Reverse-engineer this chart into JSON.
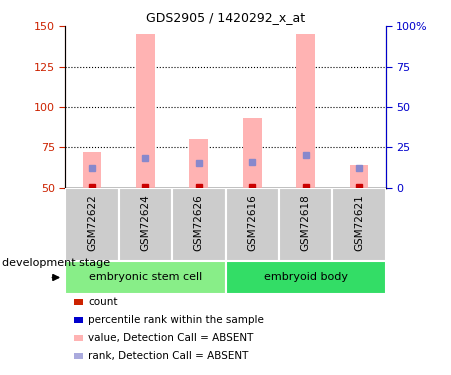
{
  "title": "GDS2905 / 1420292_x_at",
  "samples": [
    "GSM72622",
    "GSM72624",
    "GSM72626",
    "GSM72616",
    "GSM72618",
    "GSM72621"
  ],
  "groups": [
    {
      "label": "embryonic stem cell",
      "start": 0,
      "end": 3,
      "color": "#88ee88"
    },
    {
      "label": "embryoid body",
      "start": 3,
      "end": 6,
      "color": "#33dd66"
    }
  ],
  "bar_bottom": 50,
  "pink_tops": [
    72,
    145,
    80,
    93,
    145,
    64
  ],
  "blue_vals": [
    62,
    68,
    65,
    66,
    70,
    62
  ],
  "red_vals": [
    50.5,
    50.5,
    50.5,
    50.5,
    50.5,
    50.5
  ],
  "ylim_left": [
    50,
    150
  ],
  "ylim_right": [
    0,
    100
  ],
  "yticks_left": [
    50,
    75,
    100,
    125,
    150
  ],
  "yticks_right": [
    0,
    25,
    50,
    75,
    100
  ],
  "ytick_labels_right": [
    "0",
    "25",
    "50",
    "75",
    "100%"
  ],
  "pink_color": "#ffb3b3",
  "blue_color": "#8888cc",
  "red_color": "#cc0000",
  "left_tick_color": "#cc2200",
  "right_tick_color": "#0000cc",
  "gray_box_color": "#cccccc",
  "group_label": "development stage",
  "legend_items": [
    {
      "color": "#cc2200",
      "label": "count"
    },
    {
      "color": "#0000cc",
      "label": "percentile rank within the sample"
    },
    {
      "color": "#ffb3b3",
      "label": "value, Detection Call = ABSENT"
    },
    {
      "color": "#aaaadd",
      "label": "rank, Detection Call = ABSENT"
    }
  ],
  "bar_width": 0.35,
  "grid_linestyle": ":",
  "grid_linewidth": 0.8
}
